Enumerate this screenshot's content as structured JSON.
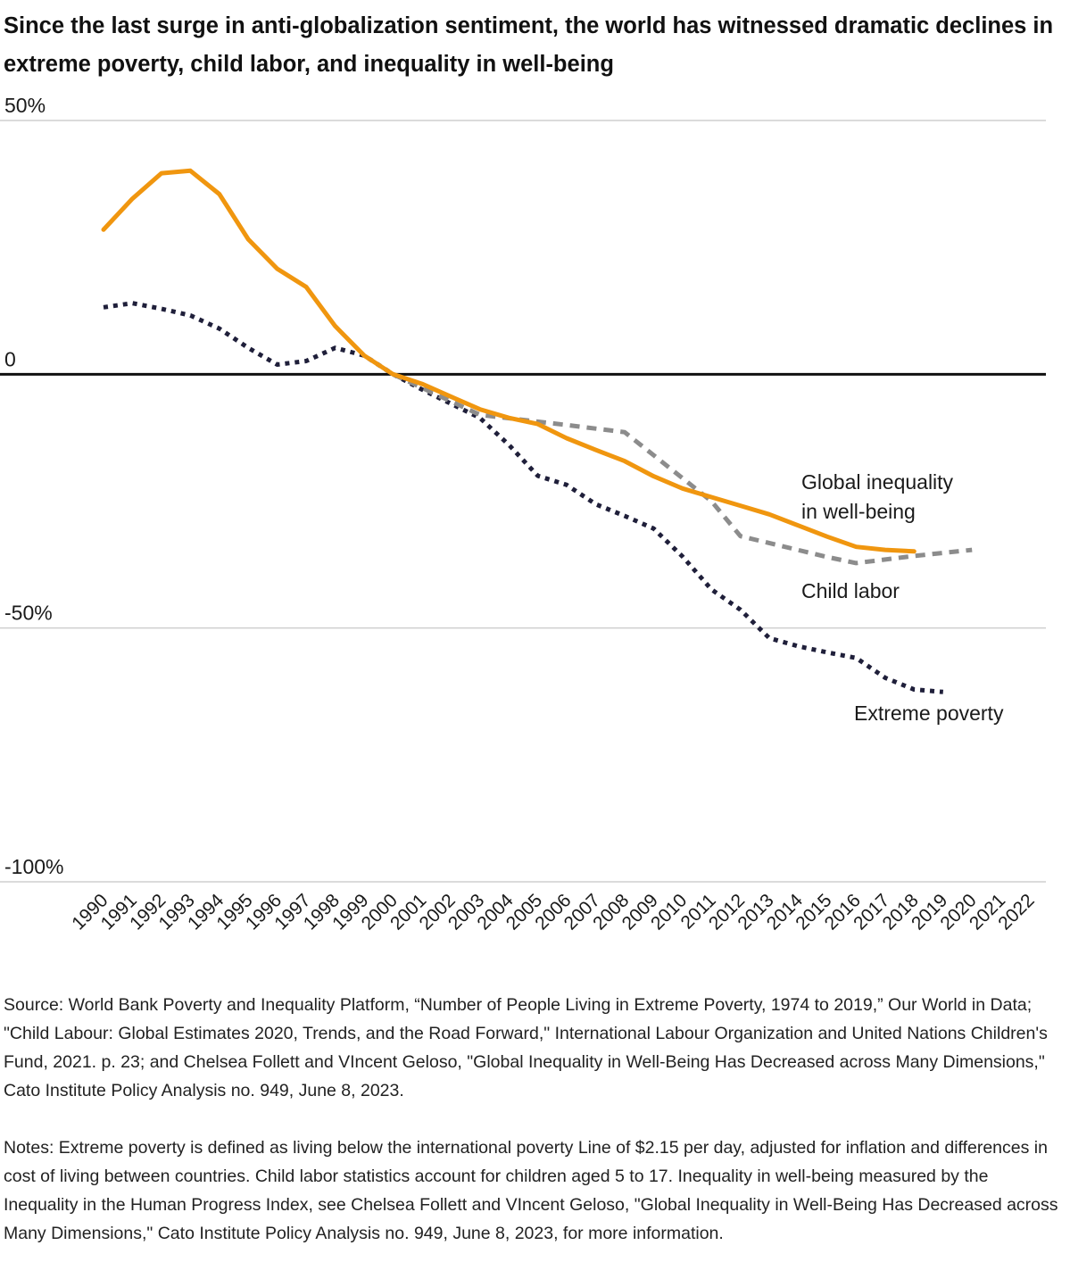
{
  "title": "Since the last surge in anti-globalization sentiment, the world has witnessed dramatic declines in extreme poverty, child labor, and inequality in well-being",
  "source": "Source: World Bank Poverty and Inequality Platform, “Number of People Living in Extreme Poverty, 1974 to 2019,” Our World in Data; \"Child Labour: Global Estimates 2020, Trends, and the Road Forward,\" International Labour Organization and United Nations Children's Fund, 2021. p. 23; and Chelsea Follett and VIncent Geloso, \"Global Inequality in Well-Being Has Decreased across Many Dimensions,\" Cato Institute Policy Analysis no. 949, June 8, 2023.",
  "notes": "Notes: Extreme poverty is defined as living below the international poverty Line of $2.15 per day, adjusted for inflation and differences in cost of living between countries. Child labor statistics account for children aged 5 to 17. Inequality in well-being measured by the Inequality in the Human Progress Index, see Chelsea Follett and VIncent Geloso, \"Global Inequality in Well-Being Has Decreased across Many Dimensions,\" Cato Institute Policy Analysis no. 949, June 8, 2023, for more information.",
  "colors": {
    "inequality": "#f0960f",
    "child_labor": "#8c8c8c",
    "poverty": "#1f1f3a",
    "zero_line": "#111111",
    "grid": "#cfcfcf"
  },
  "chart_data": {
    "type": "line",
    "title": "Since the last surge in anti-globalization sentiment, the world has witnessed dramatic declines in extreme poverty, child labor, and inequality in well-being",
    "xlabel": "",
    "ylabel": "",
    "ylim": [
      -100,
      50
    ],
    "yticks": [
      {
        "value": 50,
        "label": "50%"
      },
      {
        "value": 0,
        "label": "0"
      },
      {
        "value": -50,
        "label": "-50%"
      },
      {
        "value": -100,
        "label": "-100%"
      }
    ],
    "x": [
      "1990",
      "1991",
      "1992",
      "1993",
      "1994",
      "1995",
      "1996",
      "1997",
      "1998",
      "1999",
      "2000",
      "2001",
      "2002",
      "2003",
      "2004",
      "2005",
      "2006",
      "2007",
      "2008",
      "2009",
      "2010",
      "2011",
      "2012",
      "2013",
      "2014",
      "2015",
      "2016",
      "2017",
      "2018",
      "2019",
      "2020",
      "2021",
      "2022"
    ],
    "series": [
      {
        "name": "Global inequality in well-being",
        "label_lines": [
          "Global inequality",
          "in well-being"
        ],
        "style": "solid",
        "color_key": "inequality",
        "values": [
          28.5,
          34.6,
          39.6,
          40.1,
          35.5,
          26.6,
          20.8,
          17.2,
          9.5,
          3.7,
          0,
          -1.9,
          -4.4,
          -6.9,
          -8.6,
          -9.8,
          -12.6,
          -14.9,
          -17.1,
          -20.1,
          -22.5,
          -24.2,
          -25.9,
          -27.6,
          -29.8,
          -32.0,
          -34.0,
          -34.6,
          -34.9,
          null,
          null,
          null,
          null
        ]
      },
      {
        "name": "Child labor",
        "label_lines": [
          "Child labor"
        ],
        "style": "dashed",
        "color_key": "child_labor",
        "values": [
          null,
          null,
          null,
          null,
          null,
          null,
          null,
          null,
          null,
          null,
          0,
          null,
          null,
          -8.0,
          null,
          null,
          -10.0,
          null,
          -11.4,
          null,
          null,
          -25.0,
          -31.9,
          null,
          null,
          -36.0,
          -37.2,
          null,
          -35.8,
          null,
          -34.6,
          null,
          null
        ]
      },
      {
        "name": "Extreme poverty",
        "label_lines": [
          "Extreme poverty"
        ],
        "style": "dotted",
        "color_key": "poverty",
        "values": [
          13.2,
          14.0,
          12.9,
          11.6,
          9.0,
          5.2,
          1.9,
          2.6,
          5.2,
          3.7,
          0,
          -3.0,
          -5.8,
          -8.6,
          -13.9,
          -20.0,
          -21.8,
          -25.6,
          -27.9,
          -30.4,
          -35.9,
          -42.4,
          -46.4,
          -52.0,
          -53.6,
          -54.8,
          -55.9,
          -59.8,
          -62.1,
          -62.6,
          null,
          null,
          null
        ]
      }
    ]
  }
}
